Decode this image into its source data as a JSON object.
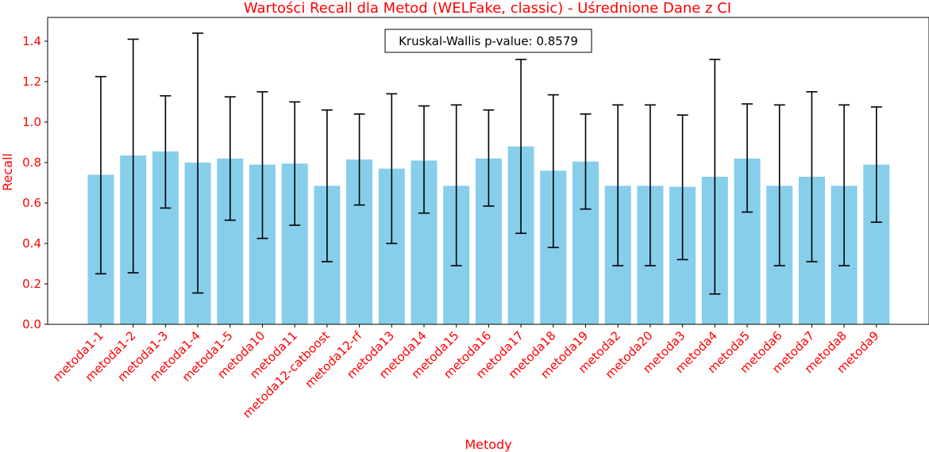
{
  "chart_data": {
    "type": "bar",
    "title": "Wartości Recall dla Metod (WELFake, classic) - Uśrednione Dane z CI",
    "xlabel": "Metody",
    "ylabel": "Recall",
    "ylim": [
      0,
      1.52
    ],
    "yticks": [
      "0.0",
      "0.2",
      "0.4",
      "0.6",
      "0.8",
      "1.0",
      "1.2",
      "1.4"
    ],
    "grid": false,
    "annotation": "Kruskal-Wallis p-value: 0.8579",
    "colors": {
      "bar": "#87ceeb",
      "error": "#000000",
      "text": "#ff0000"
    },
    "categories": [
      "metoda1-1",
      "metoda1-2",
      "metoda1-3",
      "metoda1-4",
      "metoda1-5",
      "metoda10",
      "metoda11",
      "metoda12-catboost",
      "metoda12-rf",
      "metoda13",
      "metoda14",
      "metoda15",
      "metoda16",
      "metoda17",
      "metoda18",
      "metoda19",
      "metoda2",
      "metoda20",
      "metoda3",
      "metoda4",
      "metoda5",
      "metoda6",
      "metoda7",
      "metoda8",
      "metoda9"
    ],
    "values": [
      0.74,
      0.835,
      0.855,
      0.8,
      0.82,
      0.79,
      0.795,
      0.685,
      0.815,
      0.77,
      0.81,
      0.685,
      0.82,
      0.88,
      0.76,
      0.805,
      0.685,
      0.685,
      0.68,
      0.73,
      0.82,
      0.685,
      0.73,
      0.685,
      0.79
    ],
    "ci_lower": [
      0.25,
      0.255,
      0.575,
      0.155,
      0.515,
      0.425,
      0.49,
      0.31,
      0.59,
      0.4,
      0.55,
      0.29,
      0.585,
      0.45,
      0.38,
      0.57,
      0.29,
      0.29,
      0.32,
      0.15,
      0.555,
      0.29,
      0.31,
      0.29,
      0.505
    ],
    "ci_upper": [
      1.225,
      1.41,
      1.13,
      1.44,
      1.125,
      1.15,
      1.1,
      1.06,
      1.04,
      1.14,
      1.08,
      1.085,
      1.06,
      1.31,
      1.135,
      1.04,
      1.085,
      1.085,
      1.035,
      1.31,
      1.09,
      1.085,
      1.15,
      1.085,
      1.075
    ]
  }
}
